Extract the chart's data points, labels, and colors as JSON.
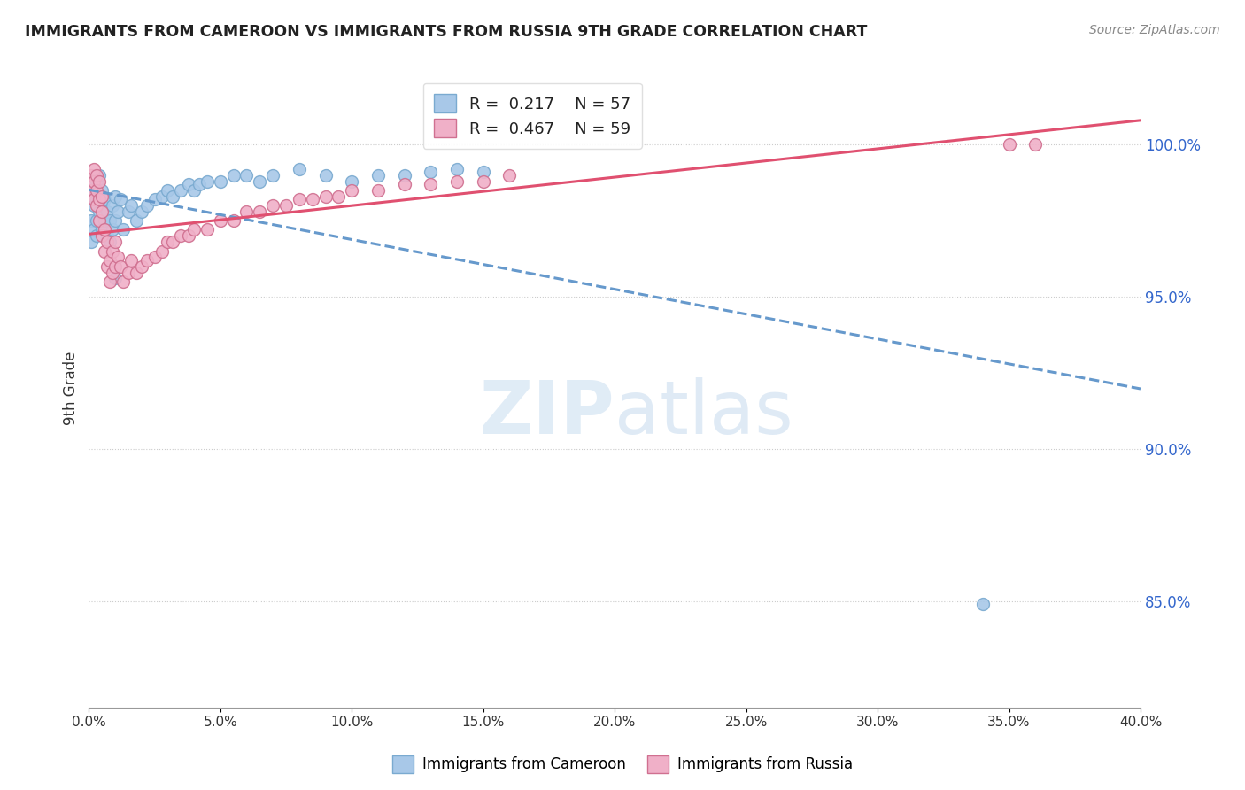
{
  "title": "IMMIGRANTS FROM CAMEROON VS IMMIGRANTS FROM RUSSIA 9TH GRADE CORRELATION CHART",
  "source": "Source: ZipAtlas.com",
  "ylabel": "9th Grade",
  "y_ticks": [
    "85.0%",
    "90.0%",
    "95.0%",
    "100.0%"
  ],
  "y_tick_vals": [
    0.85,
    0.9,
    0.95,
    1.0
  ],
  "x_lim": [
    0.0,
    0.4
  ],
  "y_lim": [
    0.815,
    1.025
  ],
  "legend_r_cameroon": "R =  0.217",
  "legend_n_cameroon": "N = 57",
  "legend_r_russia": "R =  0.467",
  "legend_n_russia": "N = 59",
  "color_cameroon_fill": "#a8c8e8",
  "color_cameroon_edge": "#7aaad0",
  "color_russia_fill": "#f0b0c8",
  "color_russia_edge": "#d07090",
  "color_cameroon_line": "#6699cc",
  "color_russia_line": "#e05070",
  "watermark_color": "#d8e8f4",
  "cameroon_x": [
    0.001,
    0.001,
    0.002,
    0.002,
    0.002,
    0.003,
    0.003,
    0.003,
    0.003,
    0.004,
    0.004,
    0.004,
    0.005,
    0.005,
    0.005,
    0.006,
    0.006,
    0.007,
    0.007,
    0.008,
    0.008,
    0.009,
    0.009,
    0.01,
    0.01,
    0.011,
    0.012,
    0.013,
    0.015,
    0.016,
    0.018,
    0.02,
    0.022,
    0.025,
    0.028,
    0.03,
    0.032,
    0.035,
    0.038,
    0.04,
    0.042,
    0.045,
    0.05,
    0.055,
    0.06,
    0.065,
    0.07,
    0.08,
    0.09,
    0.1,
    0.11,
    0.12,
    0.13,
    0.14,
    0.15,
    0.01,
    0.34
  ],
  "cameroon_y": [
    0.968,
    0.975,
    0.972,
    0.98,
    0.985,
    0.97,
    0.975,
    0.982,
    0.988,
    0.978,
    0.983,
    0.99,
    0.972,
    0.98,
    0.985,
    0.975,
    0.982,
    0.97,
    0.978,
    0.968,
    0.975,
    0.972,
    0.98,
    0.975,
    0.983,
    0.978,
    0.982,
    0.972,
    0.978,
    0.98,
    0.975,
    0.978,
    0.98,
    0.982,
    0.983,
    0.985,
    0.983,
    0.985,
    0.987,
    0.985,
    0.987,
    0.988,
    0.988,
    0.99,
    0.99,
    0.988,
    0.99,
    0.992,
    0.99,
    0.988,
    0.99,
    0.99,
    0.991,
    0.992,
    0.991,
    0.956,
    0.849
  ],
  "russia_x": [
    0.001,
    0.001,
    0.002,
    0.002,
    0.002,
    0.003,
    0.003,
    0.003,
    0.004,
    0.004,
    0.004,
    0.005,
    0.005,
    0.005,
    0.006,
    0.006,
    0.007,
    0.007,
    0.008,
    0.008,
    0.009,
    0.009,
    0.01,
    0.01,
    0.011,
    0.012,
    0.013,
    0.015,
    0.016,
    0.018,
    0.02,
    0.022,
    0.025,
    0.028,
    0.03,
    0.032,
    0.035,
    0.038,
    0.04,
    0.045,
    0.05,
    0.055,
    0.06,
    0.065,
    0.07,
    0.075,
    0.08,
    0.085,
    0.09,
    0.095,
    0.1,
    0.11,
    0.12,
    0.13,
    0.14,
    0.15,
    0.16,
    0.35,
    0.36
  ],
  "russia_y": [
    0.985,
    0.99,
    0.982,
    0.988,
    0.992,
    0.98,
    0.985,
    0.99,
    0.975,
    0.982,
    0.988,
    0.97,
    0.978,
    0.983,
    0.965,
    0.972,
    0.96,
    0.968,
    0.955,
    0.962,
    0.958,
    0.965,
    0.96,
    0.968,
    0.963,
    0.96,
    0.955,
    0.958,
    0.962,
    0.958,
    0.96,
    0.962,
    0.963,
    0.965,
    0.968,
    0.968,
    0.97,
    0.97,
    0.972,
    0.972,
    0.975,
    0.975,
    0.978,
    0.978,
    0.98,
    0.98,
    0.982,
    0.982,
    0.983,
    0.983,
    0.985,
    0.985,
    0.987,
    0.987,
    0.988,
    0.988,
    0.99,
    1.0,
    1.0
  ]
}
